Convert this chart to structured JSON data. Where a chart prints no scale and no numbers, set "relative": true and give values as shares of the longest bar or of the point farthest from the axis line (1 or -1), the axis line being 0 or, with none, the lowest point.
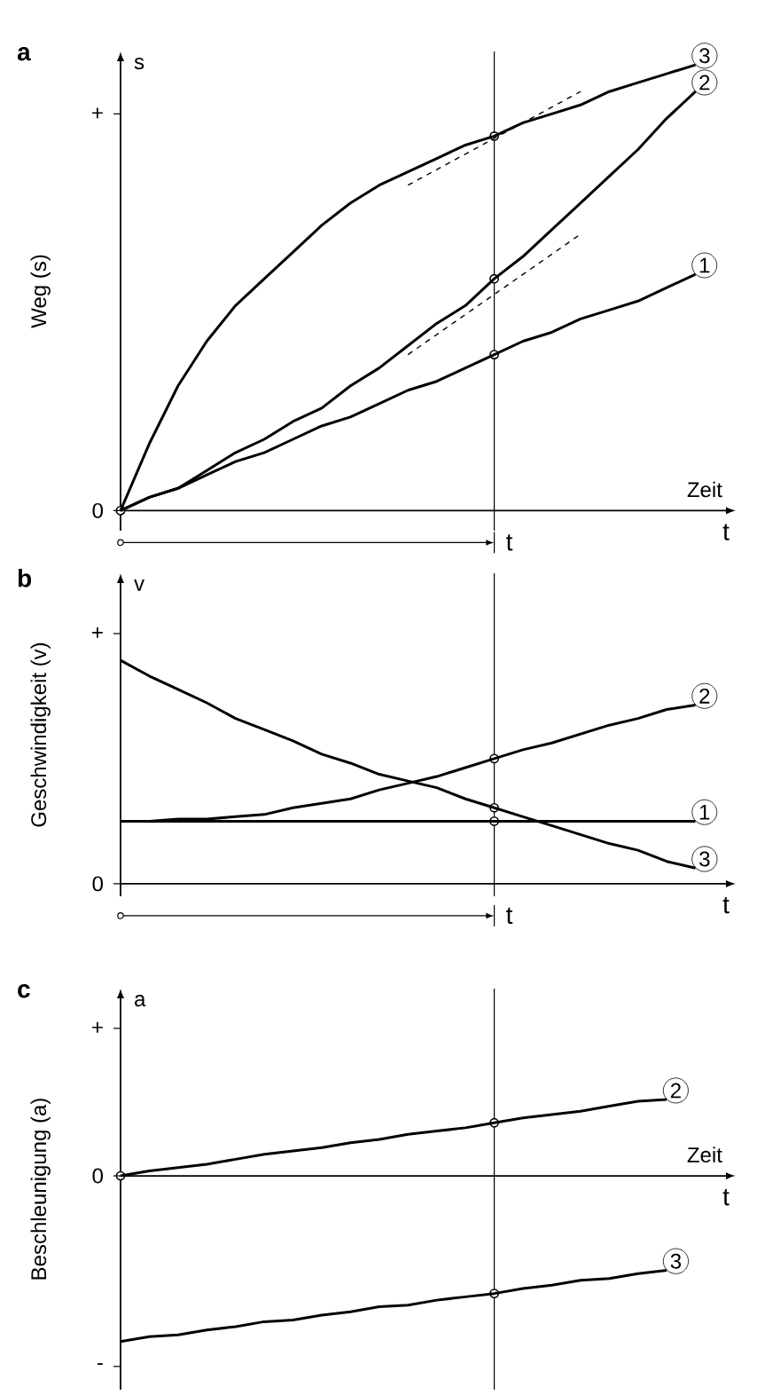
{
  "chart_data": [
    {
      "type": "line",
      "title": "a",
      "ylabel": "Weg (s)",
      "xlabel": "t",
      "relative": true,
      "annotations": [
        "s",
        "Zeit",
        "0",
        "+",
        "t"
      ],
      "categories": [
        null,
        null,
        null,
        null,
        null,
        null,
        null,
        null,
        null,
        null,
        null,
        null,
        null,
        null,
        null,
        null,
        null,
        null,
        null,
        null,
        null
      ],
      "series": [
        {
          "name": "1",
          "color": "#000000",
          "values": [
            0,
            0.03,
            0.05,
            0.08,
            0.11,
            0.13,
            0.16,
            0.19,
            0.21,
            0.24,
            0.27,
            0.29,
            0.32,
            0.35,
            0.38,
            0.4,
            0.43,
            0.45,
            0.47,
            0.5,
            0.53
          ]
        },
        {
          "name": "2",
          "color": "#000000",
          "values": [
            0,
            0.03,
            0.05,
            0.09,
            0.13,
            0.16,
            0.2,
            0.23,
            0.28,
            0.32,
            0.37,
            0.42,
            0.46,
            0.52,
            0.57,
            0.63,
            0.69,
            0.75,
            0.81,
            0.88,
            0.94
          ]
        },
        {
          "name": "3",
          "color": "#000000",
          "values": [
            0,
            0.15,
            0.28,
            0.38,
            0.46,
            0.52,
            0.58,
            0.64,
            0.69,
            0.73,
            0.76,
            0.79,
            0.82,
            0.84,
            0.87,
            0.89,
            0.91,
            0.94,
            0.96,
            0.98,
            1
          ]
        },
        {
          "type": "line",
          "line_style": "dashed",
          "color": "#000000",
          "values": [
            null,
            null,
            null,
            null,
            null,
            null,
            null,
            null,
            null,
            null,
            0.73,
            null,
            null,
            null,
            null,
            null,
            0.94,
            null,
            null,
            null,
            null
          ]
        },
        {
          "type": "line",
          "line_style": "dashed",
          "color": "#000000",
          "values": [
            null,
            null,
            null,
            null,
            null,
            null,
            null,
            null,
            null,
            null,
            0.35,
            null,
            null,
            null,
            null,
            null,
            0.62,
            null,
            null,
            null,
            null
          ]
        }
      ]
    },
    {
      "type": "line",
      "title": "b",
      "ylabel": "Geschwindigkeit (v)",
      "xlabel": "t",
      "relative": true,
      "annotations": [
        "v",
        "0",
        "+",
        "t"
      ],
      "categories": [
        null,
        null,
        null,
        null,
        null,
        null,
        null,
        null,
        null,
        null,
        null,
        null,
        null,
        null,
        null,
        null,
        null,
        null,
        null,
        null,
        null
      ],
      "series": [
        {
          "name": "1",
          "color": "#000000",
          "values": [
            0.28,
            0.28,
            0.28,
            0.28,
            0.28,
            0.28,
            0.28,
            0.28,
            0.28,
            0.28,
            0.28,
            0.28,
            0.28,
            0.28,
            0.28,
            0.28,
            0.28,
            0.28,
            0.28,
            0.28,
            0.28
          ]
        },
        {
          "name": "2",
          "color": "#000000",
          "values": [
            0.28,
            0.28,
            0.29,
            0.29,
            0.3,
            0.31,
            0.34,
            0.36,
            0.38,
            0.42,
            0.45,
            0.48,
            0.52,
            0.56,
            0.6,
            0.63,
            0.67,
            0.71,
            0.74,
            0.78,
            0.8
          ]
        },
        {
          "name": "3",
          "color": "#000000",
          "values": [
            1,
            0.93,
            0.87,
            0.81,
            0.74,
            0.69,
            0.64,
            0.58,
            0.54,
            0.49,
            0.46,
            0.43,
            0.38,
            0.34,
            0.3,
            0.26,
            0.22,
            0.18,
            0.15,
            0.1,
            0.07
          ]
        }
      ]
    },
    {
      "type": "line",
      "title": "c",
      "ylabel": "Beschleunigung (a)",
      "xlabel": "t",
      "relative": true,
      "annotations": [
        "a",
        "Zeit",
        "+",
        "0",
        "-"
      ],
      "categories": [
        null,
        null,
        null,
        null,
        null,
        null,
        null,
        null,
        null,
        null,
        null,
        null,
        null,
        null,
        null,
        null,
        null,
        null,
        null,
        null
      ],
      "series": [
        {
          "name": "2",
          "color": "#000000",
          "values": [
            0,
            0.03,
            0.05,
            0.07,
            0.1,
            0.13,
            0.15,
            0.17,
            0.2,
            0.22,
            0.25,
            0.27,
            0.29,
            0.32,
            0.35,
            0.37,
            0.39,
            0.42,
            0.45,
            0.46
          ]
        },
        {
          "name": "3",
          "color": "#000000",
          "values": [
            -1,
            -0.97,
            -0.96,
            -0.93,
            -0.91,
            -0.88,
            -0.87,
            -0.84,
            -0.82,
            -0.79,
            -0.78,
            -0.75,
            -0.73,
            -0.71,
            -0.68,
            -0.66,
            -0.63,
            -0.62,
            -0.59,
            -0.57
          ]
        }
      ]
    }
  ]
}
